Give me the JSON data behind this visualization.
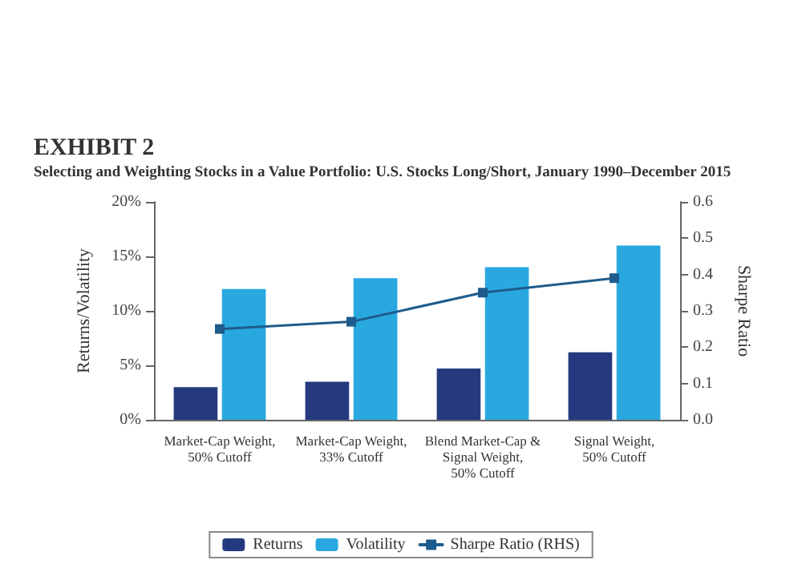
{
  "chart_data": {
    "type": "bar",
    "title": "EXHIBIT 2",
    "subtitle": "Selecting and Weighting Stocks in a Value Portfolio: U.S. Stocks Long/Short, January 1990–December 2015",
    "ylabel": "Returns/Volatility",
    "y2label": "Sharpe Ratio",
    "categories": [
      "Market-Cap Weight,\n50% Cutoff",
      "Market-Cap Weight,\n33% Cutoff",
      "Blend Market-Cap &\nSignal Weight,\n50% Cutoff",
      "Signal Weight,\n50% Cutoff"
    ],
    "series": [
      {
        "name": "Returns",
        "color": "#253a7e",
        "values": [
          3.0,
          3.5,
          4.7,
          6.2
        ]
      },
      {
        "name": "Volatility",
        "color": "#29a8e0",
        "values": [
          12,
          13,
          14,
          16
        ]
      },
      {
        "name": "Sharpe Ratio (RHS)",
        "type": "line",
        "axis": "y2",
        "color": "#1d5c8c",
        "values": [
          0.25,
          0.27,
          0.35,
          0.39
        ]
      }
    ],
    "ylim": [
      0,
      20
    ],
    "yticks": [
      {
        "value": 0,
        "label": "0%"
      },
      {
        "value": 5,
        "label": "5%"
      },
      {
        "value": 10,
        "label": "10%"
      },
      {
        "value": 15,
        "label": "15%"
      },
      {
        "value": 20,
        "label": "20%"
      }
    ],
    "y2lim": [
      0,
      0.6
    ],
    "y2ticks": [
      {
        "value": 0,
        "label": "0.0"
      },
      0.1,
      0.2,
      0.3,
      0.4,
      0.5,
      0.6
    ],
    "grid": false,
    "legend": "bottom",
    "marker": "square",
    "line_style": "solid"
  }
}
